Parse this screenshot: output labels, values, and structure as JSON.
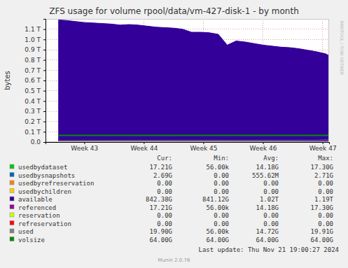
{
  "chart_data": {
    "type": "line",
    "title": "ZFS usage for volume rpool/data/vm-427-disk-1 - by month",
    "y_label": "bytes",
    "watermark": "RRDTOOL / TOBI OETIKER",
    "last_update": "Last update: Thu Nov 21 19:00:27 2024",
    "footer": "Munin 2.0.76",
    "grid": true,
    "legend": "bottom",
    "xlim": [
      42.35,
      47.11
    ],
    "xticks": [
      {
        "value": 43,
        "label": "Week 43"
      },
      {
        "value": 44,
        "label": "Week 44"
      },
      {
        "value": 45,
        "label": "Week 45"
      },
      {
        "value": 46,
        "label": "Week 46"
      },
      {
        "value": 47,
        "label": "Week 47"
      }
    ],
    "ylim": [
      0,
      1.2
    ],
    "yticks": [
      {
        "value": 0,
        "label": "0.0"
      },
      {
        "value": 0.1,
        "label": "0.1 T"
      },
      {
        "value": 0.2,
        "label": "0.2 T"
      },
      {
        "value": 0.3,
        "label": "0.3 T"
      },
      {
        "value": 0.4,
        "label": "0.4 T"
      },
      {
        "value": 0.5,
        "label": "0.5 T"
      },
      {
        "value": 0.6,
        "label": "0.6 T"
      },
      {
        "value": 0.7,
        "label": "0.7 T"
      },
      {
        "value": 0.8,
        "label": "0.8 T"
      },
      {
        "value": 0.9,
        "label": "0.9 T"
      },
      {
        "value": 1.0,
        "label": "1.0 T"
      },
      {
        "value": 1.1,
        "label": "1.1 T"
      }
    ],
    "legend_columns": [
      "Cur:",
      "Min:",
      "Avg:",
      "Max:"
    ],
    "x": [
      42.57,
      42.7,
      42.85,
      43.0,
      43.15,
      43.3,
      43.45,
      43.6,
      43.75,
      43.9,
      44.05,
      44.2,
      44.35,
      44.5,
      44.65,
      44.8,
      44.95,
      45.1,
      45.25,
      45.4,
      45.55,
      45.7,
      45.85,
      46.0,
      46.15,
      46.3,
      46.45,
      46.6,
      46.75,
      46.9,
      47.05,
      47.11
    ],
    "series": [
      {
        "name": "usedbydataset",
        "color": "#00CC00",
        "cur": "17.21G",
        "min": "56.00k",
        "avg": "14.18G",
        "max": "17.30G",
        "values": [
          0.0115,
          0.0118,
          0.012,
          0.0122,
          0.0125,
          0.0127,
          0.013,
          0.0132,
          0.0134,
          0.0136,
          0.0138,
          0.014,
          0.0142,
          0.0143,
          0.0145,
          0.0147,
          0.0148,
          0.015,
          0.0151,
          0.0153,
          0.0154,
          0.0156,
          0.0157,
          0.0158,
          0.016,
          0.0162,
          0.0164,
          0.0165,
          0.0167,
          0.0169,
          0.0171,
          0.0172
        ]
      },
      {
        "name": "usedbysnapshots",
        "color": "#0066B3",
        "cur": "2.69G",
        "min": "0.00",
        "avg": "555.62M",
        "max": "2.71G",
        "values": [
          0,
          0,
          0,
          0,
          0,
          0,
          0,
          0,
          0,
          0,
          0,
          0,
          0,
          0,
          0,
          0,
          0,
          0,
          0,
          0,
          0,
          0,
          0,
          0,
          0,
          0,
          0,
          0,
          0,
          0,
          0.0027,
          0.0027
        ]
      },
      {
        "name": "usedbyrefreservation",
        "color": "#FF8000",
        "cur": "0.00",
        "min": "0.00",
        "avg": "0.00",
        "max": "0.00",
        "values": [
          0,
          0,
          0,
          0,
          0,
          0,
          0,
          0,
          0,
          0,
          0,
          0,
          0,
          0,
          0,
          0,
          0,
          0,
          0,
          0,
          0,
          0,
          0,
          0,
          0,
          0,
          0,
          0,
          0,
          0,
          0,
          0
        ]
      },
      {
        "name": "usedbychildren",
        "color": "#FFCC00",
        "cur": "0.00",
        "min": "0.00",
        "avg": "0.00",
        "max": "0.00",
        "values": [
          0,
          0,
          0,
          0,
          0,
          0,
          0,
          0,
          0,
          0,
          0,
          0,
          0,
          0,
          0,
          0,
          0,
          0,
          0,
          0,
          0,
          0,
          0,
          0,
          0,
          0,
          0,
          0,
          0,
          0,
          0,
          0
        ]
      },
      {
        "name": "available",
        "color": "#330099",
        "type": "area",
        "cur": "842.38G",
        "min": "841.12G",
        "avg": "1.02T",
        "max": "1.19T",
        "values": [
          1.19,
          1.185,
          1.175,
          1.165,
          1.16,
          1.155,
          1.15,
          1.14,
          1.145,
          1.14,
          1.13,
          1.12,
          1.115,
          1.11,
          1.1,
          1.07,
          1.07,
          1.065,
          1.05,
          0.945,
          0.985,
          0.975,
          0.96,
          0.945,
          0.935,
          0.925,
          0.92,
          0.91,
          0.895,
          0.88,
          0.86,
          0.842
        ]
      },
      {
        "name": "referenced",
        "color": "#990099",
        "cur": "17.21G",
        "min": "56.00k",
        "avg": "14.18G",
        "max": "17.30G",
        "values": [
          0.0115,
          0.0118,
          0.012,
          0.0122,
          0.0125,
          0.0127,
          0.013,
          0.0132,
          0.0134,
          0.0136,
          0.0138,
          0.014,
          0.0142,
          0.0143,
          0.0145,
          0.0147,
          0.0148,
          0.015,
          0.0151,
          0.0153,
          0.0154,
          0.0156,
          0.0157,
          0.0158,
          0.016,
          0.0162,
          0.0164,
          0.0165,
          0.0167,
          0.0169,
          0.0171,
          0.0172
        ]
      },
      {
        "name": "reservation",
        "color": "#CCFF00",
        "cur": "0.00",
        "min": "0.00",
        "avg": "0.00",
        "max": "0.00",
        "values": [
          0,
          0,
          0,
          0,
          0,
          0,
          0,
          0,
          0,
          0,
          0,
          0,
          0,
          0,
          0,
          0,
          0,
          0,
          0,
          0,
          0,
          0,
          0,
          0,
          0,
          0,
          0,
          0,
          0,
          0,
          0,
          0
        ]
      },
      {
        "name": "refreservation",
        "color": "#FF0000",
        "cur": "0.00",
        "min": "0.00",
        "avg": "0.00",
        "max": "0.00",
        "values": [
          0,
          0,
          0,
          0,
          0,
          0,
          0,
          0,
          0,
          0,
          0,
          0,
          0,
          0,
          0,
          0,
          0,
          0,
          0,
          0,
          0,
          0,
          0,
          0,
          0,
          0,
          0,
          0,
          0,
          0,
          0,
          0
        ]
      },
      {
        "name": "used",
        "color": "#808080",
        "cur": "19.90G",
        "min": "56.00k",
        "avg": "14.72G",
        "max": "19.91G",
        "values": [
          0.0115,
          0.0118,
          0.012,
          0.0122,
          0.0125,
          0.0127,
          0.013,
          0.0132,
          0.0134,
          0.0136,
          0.0138,
          0.014,
          0.0142,
          0.0143,
          0.0145,
          0.0147,
          0.0148,
          0.015,
          0.0151,
          0.0153,
          0.0154,
          0.0156,
          0.0157,
          0.0158,
          0.016,
          0.0162,
          0.0164,
          0.0165,
          0.0167,
          0.0169,
          0.0198,
          0.0199
        ]
      },
      {
        "name": "volsize",
        "color": "#008F00",
        "cur": "64.00G",
        "min": "64.00G",
        "avg": "64.00G",
        "max": "64.00G",
        "values": [
          0.064,
          0.064,
          0.064,
          0.064,
          0.064,
          0.064,
          0.064,
          0.064,
          0.064,
          0.064,
          0.064,
          0.064,
          0.064,
          0.064,
          0.064,
          0.064,
          0.064,
          0.064,
          0.064,
          0.064,
          0.064,
          0.064,
          0.064,
          0.064,
          0.064,
          0.064,
          0.064,
          0.064,
          0.064,
          0.064,
          0.064,
          0.064
        ]
      }
    ]
  }
}
